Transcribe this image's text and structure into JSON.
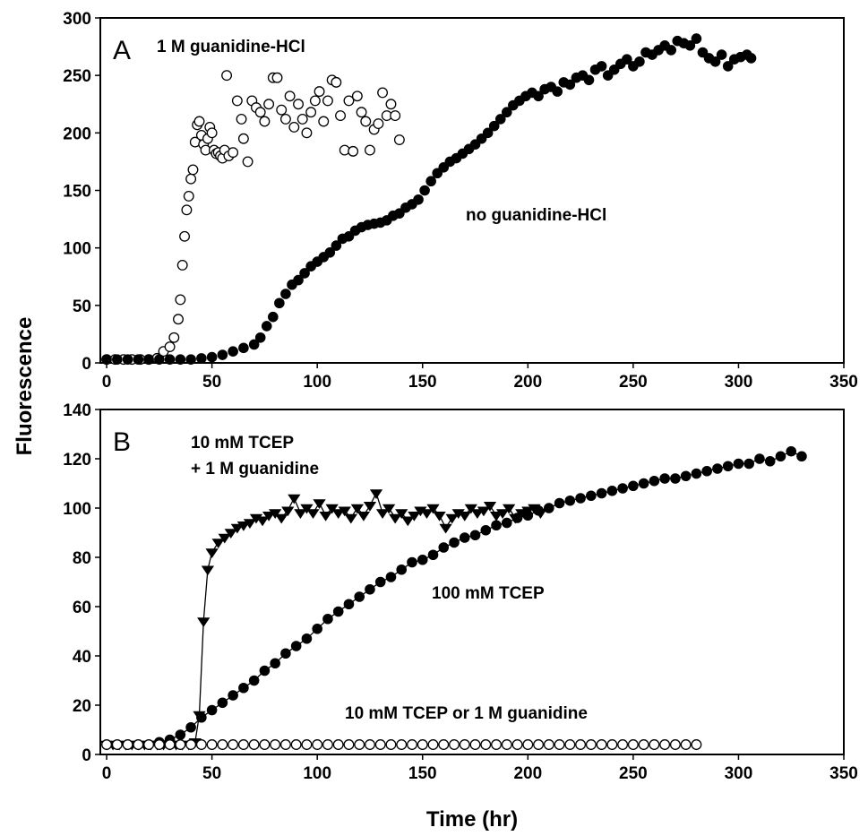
{
  "chart_data": [
    {
      "type": "scatter",
      "panel_label": "A",
      "ylabel": "Fluorescence",
      "xlabel": "Time (hr)",
      "xlim": [
        -3,
        350
      ],
      "ylim": [
        0,
        300
      ],
      "x_ticks": [
        0,
        50,
        100,
        150,
        200,
        250,
        300,
        350
      ],
      "y_ticks": [
        0,
        50,
        100,
        150,
        200,
        250,
        300
      ],
      "annotations": [
        "1 M guanidine-HCl",
        "no guanidine-HCl"
      ],
      "series": [
        {
          "marker": "circle-open",
          "color": "#000000",
          "connected": false,
          "x": [
            0,
            4,
            8,
            12,
            16,
            20,
            24,
            27,
            30,
            32,
            34,
            35,
            36,
            37,
            38,
            39,
            40,
            41,
            42,
            43,
            44,
            45,
            46,
            47,
            48,
            49,
            50,
            51,
            52,
            53,
            54,
            55,
            56,
            57,
            58,
            60,
            62,
            64,
            65,
            67,
            69,
            71,
            73,
            75,
            77,
            79,
            81,
            83,
            85,
            87,
            89,
            91,
            93,
            95,
            97,
            99,
            101,
            103,
            105,
            107,
            109,
            111,
            113,
            115,
            117,
            119,
            121,
            123,
            125,
            127,
            129,
            131,
            133,
            135,
            137,
            139
          ],
          "y": [
            3,
            3,
            3,
            3,
            3,
            3,
            4,
            10,
            14,
            22,
            38,
            55,
            85,
            110,
            133,
            145,
            160,
            168,
            192,
            207,
            210,
            198,
            190,
            185,
            195,
            205,
            200,
            185,
            182,
            183,
            180,
            178,
            185,
            250,
            180,
            183,
            228,
            212,
            195,
            175,
            228,
            222,
            218,
            210,
            225,
            248,
            248,
            220,
            212,
            232,
            205,
            225,
            212,
            200,
            218,
            228,
            236,
            210,
            228,
            246,
            244,
            215,
            185,
            228,
            184,
            232,
            218,
            210,
            185,
            203,
            208,
            235,
            215,
            225,
            215,
            194
          ]
        },
        {
          "marker": "circle-filled",
          "color": "#000000",
          "connected": false,
          "x": [
            0,
            5,
            10,
            15,
            20,
            25,
            30,
            35,
            40,
            45,
            50,
            55,
            60,
            65,
            70,
            73,
            76,
            79,
            82,
            85,
            88,
            91,
            94,
            97,
            100,
            103,
            106,
            109,
            112,
            115,
            118,
            121,
            124,
            127,
            130,
            133,
            136,
            139,
            142,
            145,
            148,
            151,
            154,
            157,
            160,
            163,
            166,
            169,
            172,
            175,
            178,
            181,
            184,
            187,
            190,
            193,
            196,
            199,
            202,
            205,
            208,
            211,
            214,
            217,
            220,
            223,
            226,
            229,
            232,
            235,
            238,
            241,
            244,
            247,
            250,
            253,
            256,
            259,
            262,
            265,
            268,
            271,
            274,
            277,
            280,
            283,
            286,
            289,
            292,
            295,
            298,
            301,
            304,
            306
          ],
          "y": [
            3,
            3,
            3,
            3,
            3,
            3,
            3,
            3,
            3,
            4,
            5,
            7,
            10,
            13,
            16,
            22,
            32,
            40,
            52,
            60,
            68,
            72,
            78,
            84,
            88,
            92,
            96,
            102,
            108,
            110,
            115,
            118,
            120,
            121,
            122,
            124,
            128,
            130,
            135,
            138,
            142,
            150,
            158,
            165,
            170,
            175,
            178,
            182,
            186,
            190,
            195,
            200,
            206,
            212,
            218,
            224,
            228,
            232,
            235,
            232,
            238,
            240,
            236,
            244,
            242,
            248,
            250,
            246,
            255,
            258,
            250,
            255,
            260,
            264,
            258,
            262,
            270,
            268,
            272,
            276,
            272,
            280,
            278,
            276,
            282,
            270,
            265,
            262,
            268,
            258,
            264,
            266,
            268,
            265
          ]
        }
      ]
    },
    {
      "type": "line",
      "panel_label": "B",
      "xlabel": "Time (hr)",
      "ylabel": "Fluorescence",
      "xlim": [
        -3,
        350
      ],
      "ylim": [
        0,
        140
      ],
      "x_ticks": [
        0,
        50,
        100,
        150,
        200,
        250,
        300,
        350
      ],
      "y_ticks": [
        0,
        20,
        40,
        60,
        80,
        100,
        120,
        140
      ],
      "annotations": [
        "10 mM TCEP",
        "+ 1 M guanidine",
        "100 mM TCEP",
        "10 mM TCEP or 1 M guanidine"
      ],
      "series": [
        {
          "marker": "triangle-down-filled",
          "color": "#000000",
          "connected": true,
          "x": [
            0,
            3,
            6,
            9,
            12,
            15,
            18,
            21,
            24,
            27,
            30,
            33,
            36,
            39,
            42,
            44,
            46,
            48,
            50,
            53,
            56,
            59,
            62,
            65,
            68,
            71,
            74,
            77,
            80,
            83,
            86,
            89,
            92,
            95,
            98,
            101,
            104,
            107,
            110,
            113,
            116,
            119,
            122,
            125,
            128,
            131,
            134,
            137,
            140,
            143,
            146,
            149,
            152,
            155,
            158,
            161,
            164,
            167,
            170,
            173,
            176,
            179,
            182,
            185,
            188,
            191,
            194,
            197,
            200,
            203,
            206
          ],
          "y": [
            4,
            4,
            4,
            4,
            4,
            4,
            4,
            4,
            4,
            4,
            4,
            4,
            4,
            4,
            5,
            16,
            54,
            75,
            82,
            86,
            88,
            90,
            92,
            93,
            94,
            96,
            95,
            97,
            98,
            96,
            99,
            104,
            98,
            100,
            98,
            102,
            97,
            100,
            98,
            99,
            96,
            100,
            97,
            101,
            106,
            98,
            100,
            96,
            98,
            95,
            97,
            99,
            98,
            100,
            97,
            92,
            96,
            98,
            97,
            100,
            98,
            99,
            101,
            97,
            98,
            100,
            96,
            98,
            99,
            100,
            98
          ]
        },
        {
          "marker": "circle-filled",
          "color": "#000000",
          "connected": true,
          "x": [
            0,
            5,
            10,
            15,
            20,
            25,
            30,
            35,
            40,
            45,
            50,
            55,
            60,
            65,
            70,
            75,
            80,
            85,
            90,
            95,
            100,
            105,
            110,
            115,
            120,
            125,
            130,
            135,
            140,
            145,
            150,
            155,
            160,
            165,
            170,
            175,
            180,
            185,
            190,
            195,
            200,
            205,
            210,
            215,
            220,
            225,
            230,
            235,
            240,
            245,
            250,
            255,
            260,
            265,
            270,
            275,
            280,
            285,
            290,
            295,
            300,
            305,
            310,
            315,
            320,
            325,
            330
          ],
          "y": [
            4,
            4,
            4,
            4,
            4,
            5,
            6,
            8,
            11,
            15,
            18,
            21,
            24,
            27,
            30,
            34,
            37,
            41,
            44,
            47,
            51,
            55,
            58,
            61,
            64,
            67,
            70,
            72,
            75,
            78,
            79,
            81,
            84,
            86,
            88,
            89,
            91,
            93,
            94,
            96,
            97,
            99,
            100,
            102,
            103,
            104,
            105,
            106,
            107,
            108,
            109,
            110,
            111,
            112,
            112,
            113,
            114,
            115,
            116,
            117,
            118,
            118,
            120,
            119,
            121,
            123,
            121
          ]
        },
        {
          "marker": "circle-open",
          "color": "#000000",
          "connected": true,
          "x": [
            0,
            5,
            10,
            15,
            20,
            25,
            30,
            35,
            40,
            45,
            50,
            55,
            60,
            65,
            70,
            75,
            80,
            85,
            90,
            95,
            100,
            105,
            110,
            115,
            120,
            125,
            130,
            135,
            140,
            145,
            150,
            155,
            160,
            165,
            170,
            175,
            180,
            185,
            190,
            195,
            200,
            205,
            210,
            215,
            220,
            225,
            230,
            235,
            240,
            245,
            250,
            255,
            260,
            265,
            270,
            275,
            280
          ],
          "y": [
            4,
            4,
            4,
            4,
            4,
            4,
            4,
            4,
            4,
            4,
            4,
            4,
            4,
            4,
            4,
            4,
            4,
            4,
            4,
            4,
            4,
            4,
            4,
            4,
            4,
            4,
            4,
            4,
            4,
            4,
            4,
            4,
            4,
            4,
            4,
            4,
            4,
            4,
            4,
            4,
            4,
            4,
            4,
            4,
            4,
            4,
            4,
            4,
            4,
            4,
            4,
            4,
            4,
            4,
            4,
            4,
            4
          ]
        }
      ]
    }
  ]
}
